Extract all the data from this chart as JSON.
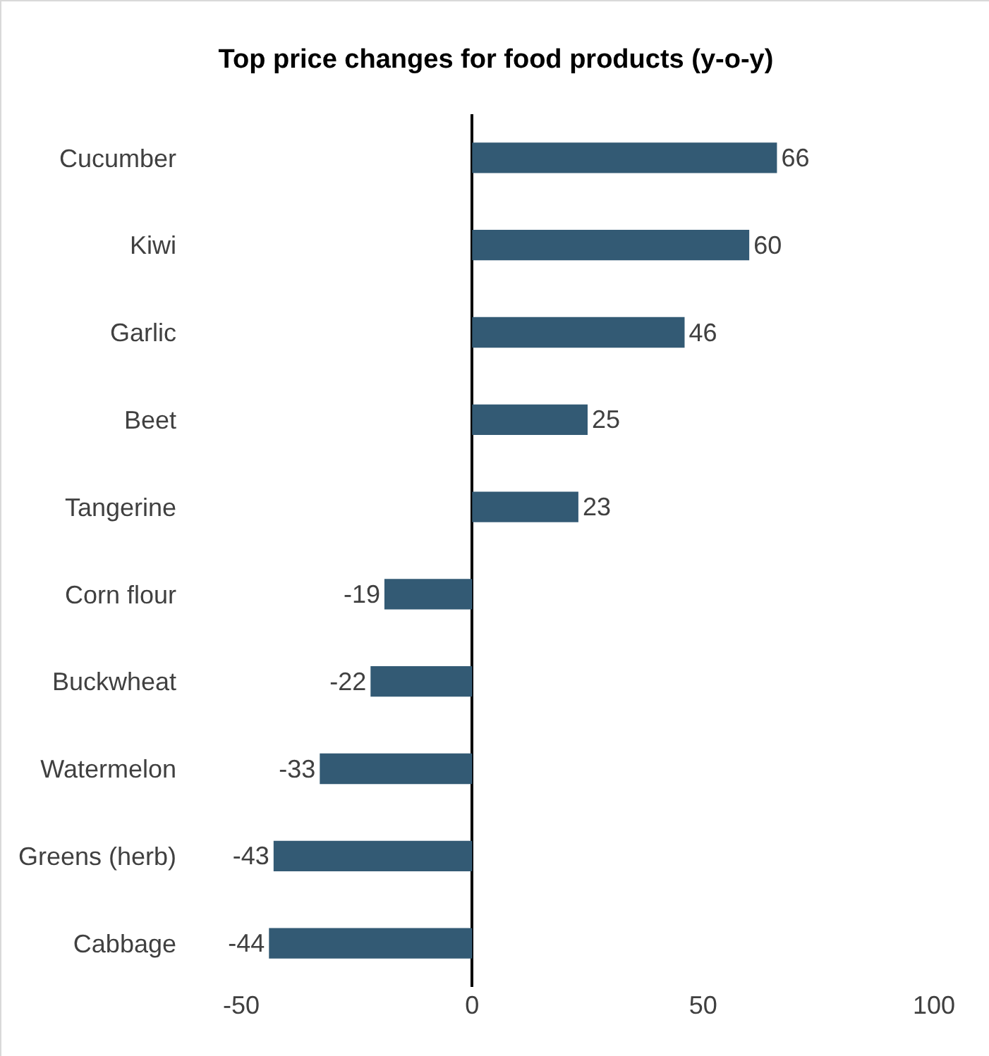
{
  "chart_data": {
    "type": "bar",
    "title": "Top price changes for food products (y-o-y)",
    "orientation": "horizontal",
    "categories": [
      "Cucumber",
      "Kiwi",
      "Garlic",
      "Beet",
      "Tangerine",
      "Corn flour",
      "Buckwheat",
      "Watermelon",
      "Greens (herb)",
      "Cabbage"
    ],
    "values": [
      66,
      60,
      46,
      25,
      23,
      -19,
      -22,
      -33,
      -43,
      -44
    ],
    "color": "#335a74",
    "data_labels": true,
    "xlim": [
      -50,
      100
    ],
    "xticks": [
      -50,
      0,
      50,
      100
    ],
    "legend": false
  }
}
